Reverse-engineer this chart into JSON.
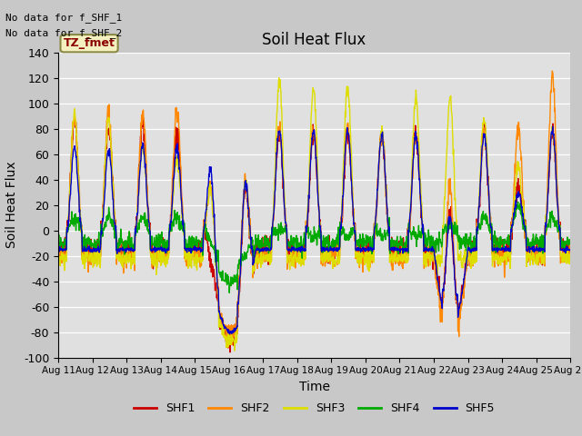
{
  "title": "Soil Heat Flux",
  "xlabel": "Time",
  "ylabel": "Soil Heat Flux",
  "ylim": [
    -100,
    140
  ],
  "yticks": [
    -100,
    -80,
    -60,
    -40,
    -20,
    0,
    20,
    40,
    60,
    80,
    100,
    120,
    140
  ],
  "note1": "No data for f_SHF_1",
  "note2": "No data for f_SHF_2",
  "legend_label": "TZ_fmet",
  "series_labels": [
    "SHF1",
    "SHF2",
    "SHF3",
    "SHF4",
    "SHF5"
  ],
  "series_colors": [
    "#cc0000",
    "#ff8800",
    "#dddd00",
    "#00aa00",
    "#0000cc"
  ],
  "background_color": "#c8c8c8",
  "axes_facecolor": "#e0e0e0",
  "grid_color": "#ffffff"
}
